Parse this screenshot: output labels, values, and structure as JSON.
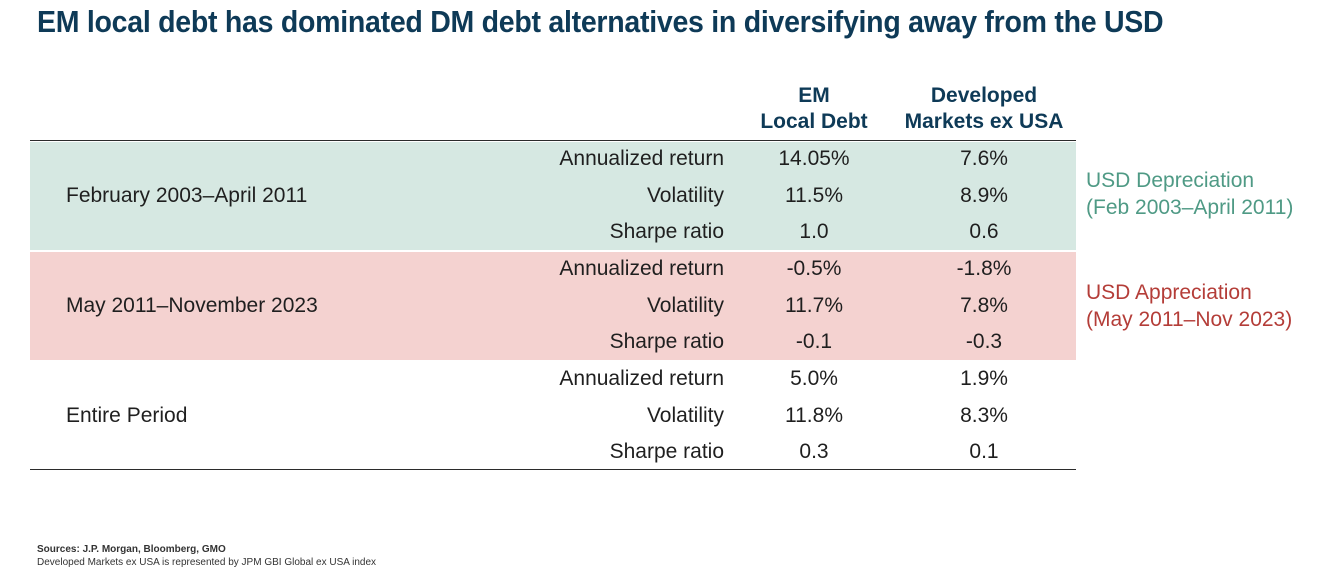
{
  "title": "EM local debt has dominated DM debt alternatives in diversifying away from the USD",
  "colors": {
    "title": "#0e3a57",
    "depreciation_band": "#d6e8e2",
    "appreciation_band": "#f4d2d0",
    "depreciation_text": "#4f9a85",
    "appreciation_text": "#b43d38"
  },
  "chart_data": {
    "type": "table",
    "title": "EM local debt has dominated DM debt alternatives in diversifying away from the USD",
    "columns": [
      {
        "line1": "EM",
        "line2": "Local Debt"
      },
      {
        "line1": "Developed",
        "line2": "Markets ex USA"
      }
    ],
    "periods": [
      {
        "label": "February 2003–April 2011",
        "annotation": [
          "USD Depreciation",
          "(Feb 2003–April 2011)"
        ],
        "rows": [
          {
            "metric": "Annualized return",
            "em": "14.05%",
            "dm": "7.6%"
          },
          {
            "metric": "Volatility",
            "em": "11.5%",
            "dm": "8.9%"
          },
          {
            "metric": "Sharpe ratio",
            "em": "1.0",
            "dm": "0.6"
          }
        ]
      },
      {
        "label": "May 2011–November 2023",
        "annotation": [
          "USD Appreciation",
          "(May 2011–Nov 2023)"
        ],
        "rows": [
          {
            "metric": "Annualized return",
            "em": "-0.5%",
            "dm": "-1.8%"
          },
          {
            "metric": "Volatility",
            "em": "11.7%",
            "dm": "7.8%"
          },
          {
            "metric": "Sharpe ratio",
            "em": "-0.1",
            "dm": "-0.3"
          }
        ]
      },
      {
        "label": "Entire Period",
        "annotation": [],
        "rows": [
          {
            "metric": "Annualized return",
            "em": "5.0%",
            "dm": "1.9%"
          },
          {
            "metric": "Volatility",
            "em": "11.8%",
            "dm": "8.3%"
          },
          {
            "metric": "Sharpe ratio",
            "em": "0.3",
            "dm": "0.1"
          }
        ]
      }
    ]
  },
  "footer": {
    "source": "Sources: J.P. Morgan, Bloomberg, GMO",
    "note": "Developed Markets ex USA is represented by JPM GBI Global ex USA index"
  }
}
